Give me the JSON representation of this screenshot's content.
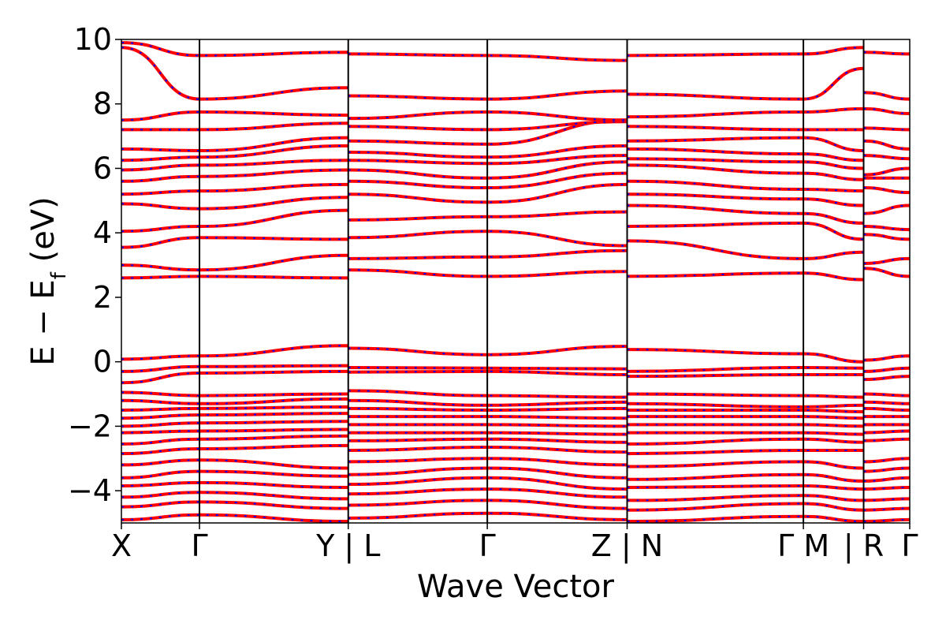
{
  "chart_data": {
    "type": "line",
    "title": "",
    "xlabel": "Wave Vector",
    "ylabel": "E − E_f (eV)",
    "ylabel_parts": {
      "main": "E − E",
      "sub": "f",
      "unit": " (eV)"
    },
    "ylim": [
      -5,
      10
    ],
    "yticks": [
      -4,
      -2,
      0,
      2,
      4,
      6,
      8,
      10
    ],
    "ytick_labels": [
      "−4",
      "−2",
      "0",
      "2",
      "4",
      "6",
      "8",
      "10"
    ],
    "xlim": [
      0,
      10.6
    ],
    "high_symmetry_points": [
      {
        "x": 0.0,
        "label": "X"
      },
      {
        "x": 1.05,
        "label": "Γ"
      },
      {
        "x": 3.05,
        "label": "Y | L"
      },
      {
        "x": 4.92,
        "label": "Γ"
      },
      {
        "x": 6.8,
        "label": "Z | N"
      },
      {
        "x": 9.17,
        "label": "Γ M"
      },
      {
        "x": 9.98,
        "label": "| R"
      },
      {
        "x": 10.6,
        "label": "Γ"
      }
    ],
    "styles": {
      "band_color": "#ff0000",
      "overlay_color": "#0000ff",
      "frame_color": "#000000"
    },
    "series": [
      {
        "style": "solid-red",
        "x": [
          0,
          1.05,
          3.05,
          3.05,
          4.92,
          6.8,
          6.8,
          9.17,
          9.98,
          9.98,
          10.6
        ],
        "y": [
          0.08,
          0.18,
          0.5,
          0.42,
          0.22,
          0.48,
          0.38,
          0.25,
          0.0,
          0.05,
          0.18
        ]
      },
      {
        "style": "solid-red",
        "x": [
          0,
          1.05,
          3.05,
          3.05,
          4.92,
          6.8,
          6.8,
          9.17,
          9.98,
          9.98,
          10.6
        ],
        "y": [
          -0.3,
          -0.15,
          -0.12,
          -0.18,
          -0.2,
          -0.22,
          -0.3,
          -0.18,
          -0.2,
          -0.3,
          -0.2
        ]
      },
      {
        "style": "solid-red",
        "x": [
          0,
          1.05,
          3.05,
          3.05,
          4.92,
          6.8,
          6.8,
          9.17,
          9.98,
          9.98,
          10.6
        ],
        "y": [
          -0.65,
          -0.35,
          -0.3,
          -0.32,
          -0.3,
          -0.4,
          -0.45,
          -0.4,
          -0.4,
          -0.55,
          -0.45
        ]
      },
      {
        "style": "solid-red",
        "x": [
          0,
          1.05,
          3.05,
          3.05,
          4.92,
          6.8,
          6.8,
          9.17,
          9.98,
          9.98,
          10.6
        ],
        "y": [
          2.6,
          2.65,
          2.6,
          2.85,
          2.65,
          2.8,
          2.65,
          2.75,
          2.55,
          2.9,
          2.65
        ]
      },
      {
        "style": "solid-red",
        "x": [
          0,
          1.05,
          3.05,
          3.05,
          4.92,
          6.8,
          6.8,
          9.17,
          9.98,
          9.98,
          10.6
        ],
        "y": [
          3.0,
          2.85,
          3.3,
          3.2,
          3.25,
          3.45,
          3.75,
          3.2,
          3.4,
          3.05,
          3.2
        ]
      },
      {
        "style": "solid-red",
        "x": [
          0,
          1.05,
          3.05,
          3.05,
          4.92,
          6.8,
          6.8,
          9.17,
          9.98,
          9.98,
          10.6
        ],
        "y": [
          3.55,
          3.85,
          3.8,
          3.85,
          4.05,
          3.6,
          4.2,
          4.3,
          3.8,
          3.95,
          3.8
        ]
      },
      {
        "style": "solid-red",
        "x": [
          0,
          1.05,
          3.05,
          3.05,
          4.92,
          6.8,
          6.8,
          9.17,
          9.98,
          9.98,
          10.6
        ],
        "y": [
          4.05,
          4.2,
          4.7,
          4.4,
          4.5,
          4.65,
          4.85,
          4.6,
          4.3,
          4.2,
          4.1
        ]
      },
      {
        "style": "solid-red",
        "x": [
          0,
          1.05,
          3.05,
          3.05,
          4.92,
          6.8,
          6.8,
          9.17,
          9.98,
          9.98,
          10.6
        ],
        "y": [
          4.9,
          4.75,
          5.1,
          5.2,
          4.95,
          5.5,
          5.2,
          5.05,
          4.85,
          4.6,
          4.85
        ]
      },
      {
        "style": "solid-red",
        "x": [
          0,
          1.05,
          3.05,
          3.05,
          4.92,
          6.8,
          6.8,
          9.17,
          9.98,
          9.98,
          10.6
        ],
        "y": [
          5.2,
          5.3,
          5.5,
          5.6,
          5.4,
          5.85,
          5.6,
          5.35,
          5.3,
          5.4,
          5.25
        ]
      },
      {
        "style": "solid-red",
        "x": [
          0,
          1.05,
          3.05,
          3.05,
          4.92,
          6.8,
          6.8,
          9.17,
          9.98,
          9.98,
          10.6
        ],
        "y": [
          5.6,
          5.75,
          5.95,
          5.95,
          5.7,
          6.2,
          6.1,
          5.85,
          5.65,
          5.7,
          5.7
        ]
      },
      {
        "style": "solid-red",
        "x": [
          0,
          1.05,
          3.05,
          3.05,
          4.92,
          6.8,
          6.8,
          9.17,
          9.98,
          9.98,
          10.6
        ],
        "y": [
          5.95,
          6.1,
          6.25,
          6.25,
          6.15,
          6.4,
          6.3,
          6.2,
          6.0,
          5.8,
          6.0
        ]
      },
      {
        "style": "solid-red",
        "x": [
          0,
          1.05,
          3.05,
          3.05,
          4.92,
          6.8,
          6.8,
          9.17,
          9.98,
          9.98,
          10.6
        ],
        "y": [
          6.25,
          6.35,
          6.7,
          6.5,
          6.35,
          6.7,
          6.6,
          6.45,
          6.25,
          6.4,
          6.3
        ]
      },
      {
        "style": "solid-red",
        "x": [
          0,
          1.05,
          3.05,
          3.05,
          4.92,
          6.8,
          6.8,
          9.17,
          9.98,
          9.98,
          10.6
        ],
        "y": [
          6.6,
          6.55,
          6.95,
          6.85,
          6.75,
          7.5,
          6.85,
          6.95,
          6.55,
          6.85,
          6.6
        ]
      },
      {
        "style": "solid-red",
        "x": [
          0,
          1.05,
          3.05,
          3.05,
          4.92,
          6.8,
          6.8,
          9.17,
          9.98,
          9.98,
          10.6
        ],
        "y": [
          7.2,
          7.2,
          7.4,
          7.3,
          7.2,
          7.45,
          7.3,
          7.2,
          7.2,
          7.25,
          7.2
        ]
      },
      {
        "style": "solid-red",
        "x": [
          0,
          1.05,
          3.05,
          3.05,
          4.92,
          6.8,
          6.8,
          9.17,
          9.98,
          9.98,
          10.6
        ],
        "y": [
          7.5,
          7.75,
          7.65,
          7.55,
          7.75,
          7.5,
          7.6,
          7.75,
          7.85,
          7.85,
          7.7
        ]
      },
      {
        "style": "solid-red",
        "x": [
          0,
          1.05,
          3.05,
          3.05,
          4.92,
          6.8,
          6.8,
          9.17,
          9.98,
          9.98,
          10.6
        ],
        "y": [
          9.75,
          8.15,
          8.5,
          8.25,
          8.15,
          8.4,
          8.3,
          8.15,
          9.1,
          8.35,
          8.15
        ]
      },
      {
        "style": "solid-red",
        "x": [
          0,
          1.05,
          3.05,
          3.05,
          4.92,
          6.8,
          6.8,
          9.17,
          9.98,
          9.98,
          10.6
        ],
        "y": [
          9.9,
          9.5,
          9.6,
          9.55,
          9.5,
          9.35,
          9.5,
          9.55,
          9.75,
          9.6,
          9.55
        ]
      },
      {
        "style": "solid-red",
        "x": [
          0,
          1.05,
          3.05,
          3.05,
          4.92,
          6.8,
          6.8,
          9.17,
          9.98,
          9.98,
          10.6
        ],
        "y": [
          -0.95,
          -1.05,
          -1.0,
          -0.9,
          -1.05,
          -1.1,
          -1.0,
          -1.05,
          -1.1,
          -1.0,
          -1.05
        ]
      },
      {
        "style": "solid-red",
        "x": [
          0,
          1.05,
          3.05,
          3.05,
          4.92,
          6.8,
          6.8,
          9.17,
          9.98,
          9.98,
          10.6
        ],
        "y": [
          -1.2,
          -1.3,
          -1.15,
          -1.2,
          -1.35,
          -1.25,
          -1.3,
          -1.4,
          -1.35,
          -1.25,
          -1.3
        ]
      },
      {
        "style": "solid-red",
        "x": [
          0,
          1.05,
          3.05,
          3.05,
          4.92,
          6.8,
          6.8,
          9.17,
          9.98,
          9.98,
          10.6
        ],
        "y": [
          -1.5,
          -1.45,
          -1.4,
          -1.45,
          -1.5,
          -1.45,
          -1.5,
          -1.5,
          -1.55,
          -1.45,
          -1.5
        ]
      },
      {
        "style": "solid-red",
        "x": [
          0,
          1.05,
          3.05,
          3.05,
          4.92,
          6.8,
          6.8,
          9.17,
          9.98,
          9.98,
          10.6
        ],
        "y": [
          -1.75,
          -1.65,
          -1.6,
          -1.7,
          -1.7,
          -1.75,
          -1.7,
          -1.7,
          -1.75,
          -1.7,
          -1.7
        ]
      },
      {
        "style": "solid-red",
        "x": [
          0,
          1.05,
          3.05,
          3.05,
          4.92,
          6.8,
          6.8,
          9.17,
          9.98,
          9.98,
          10.6
        ],
        "y": [
          -2.0,
          -1.9,
          -1.85,
          -1.95,
          -1.95,
          -2.0,
          -1.95,
          -1.95,
          -2.0,
          -1.95,
          -1.95
        ]
      },
      {
        "style": "solid-red",
        "x": [
          0,
          1.05,
          3.05,
          3.05,
          4.92,
          6.8,
          6.8,
          9.17,
          9.98,
          9.98,
          10.6
        ],
        "y": [
          -2.2,
          -2.15,
          -2.1,
          -2.2,
          -2.2,
          -2.25,
          -2.2,
          -2.2,
          -2.25,
          -2.2,
          -2.15
        ]
      },
      {
        "style": "solid-red",
        "x": [
          0,
          1.05,
          3.05,
          3.05,
          4.92,
          6.8,
          6.8,
          9.17,
          9.98,
          9.98,
          10.6
        ],
        "y": [
          -2.55,
          -2.4,
          -2.3,
          -2.45,
          -2.4,
          -2.5,
          -2.55,
          -2.4,
          -2.5,
          -2.45,
          -2.4
        ]
      },
      {
        "style": "solid-red",
        "x": [
          0,
          1.05,
          3.05,
          3.05,
          4.92,
          6.8,
          6.8,
          9.17,
          9.98,
          9.98,
          10.6
        ],
        "y": [
          -2.85,
          -2.7,
          -2.6,
          -2.75,
          -2.65,
          -2.8,
          -2.85,
          -2.75,
          -2.75,
          -3.1,
          -3.0
        ]
      },
      {
        "style": "solid-red",
        "x": [
          0,
          1.05,
          3.05,
          3.05,
          4.92,
          6.8,
          6.8,
          9.17,
          9.98,
          9.98,
          10.6
        ],
        "y": [
          -3.2,
          -3.05,
          -3.3,
          -3.1,
          -3.0,
          -3.2,
          -3.25,
          -3.1,
          -3.3,
          -3.4,
          -3.3
        ]
      },
      {
        "style": "solid-red",
        "x": [
          0,
          1.05,
          3.05,
          3.05,
          4.92,
          6.8,
          6.8,
          9.17,
          9.98,
          9.98,
          10.6
        ],
        "y": [
          -3.6,
          -3.4,
          -3.55,
          -3.5,
          -3.3,
          -3.6,
          -3.65,
          -3.5,
          -3.7,
          -3.7,
          -3.6
        ]
      },
      {
        "style": "solid-red",
        "x": [
          0,
          1.05,
          3.05,
          3.05,
          4.92,
          6.8,
          6.8,
          9.17,
          9.98,
          9.98,
          10.6
        ],
        "y": [
          -3.85,
          -3.75,
          -3.9,
          -3.8,
          -3.6,
          -3.95,
          -3.9,
          -3.85,
          -3.95,
          -3.95,
          -3.9
        ]
      },
      {
        "style": "solid-red",
        "x": [
          0,
          1.05,
          3.05,
          3.05,
          4.92,
          6.8,
          6.8,
          9.17,
          9.98,
          9.98,
          10.6
        ],
        "y": [
          -4.2,
          -4.05,
          -4.25,
          -4.1,
          -3.95,
          -4.2,
          -4.3,
          -4.15,
          -4.3,
          -4.3,
          -4.25
        ]
      },
      {
        "style": "solid-red",
        "x": [
          0,
          1.05,
          3.05,
          3.05,
          4.92,
          6.8,
          6.8,
          9.17,
          9.98,
          9.98,
          10.6
        ],
        "y": [
          -4.5,
          -4.35,
          -4.55,
          -4.45,
          -4.3,
          -4.55,
          -4.6,
          -4.4,
          -4.6,
          -4.6,
          -4.55
        ]
      },
      {
        "style": "solid-red",
        "x": [
          0,
          1.05,
          3.05,
          3.05,
          4.92,
          6.8,
          6.8,
          9.17,
          9.98,
          9.98,
          10.6
        ],
        "y": [
          -4.9,
          -4.75,
          -4.95,
          -4.85,
          -4.7,
          -4.9,
          -4.95,
          -4.8,
          -4.95,
          -4.95,
          -4.9
        ]
      }
    ]
  }
}
